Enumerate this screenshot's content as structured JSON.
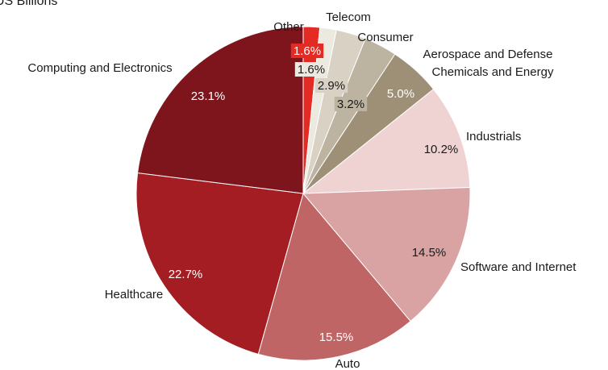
{
  "unit_label": "US Billions",
  "chart_data": {
    "type": "pie",
    "start_angle_deg": 0,
    "direction": "clockwise",
    "slices": [
      {
        "label": "Other",
        "value": 1.6,
        "display": "1.6%",
        "color": "#e42b23"
      },
      {
        "label": "Telecom",
        "value": 1.6,
        "display": "1.6%",
        "color": "#ece9e1"
      },
      {
        "label": "Consumer",
        "value": 2.9,
        "display": "2.9%",
        "color": "#d8d1c4"
      },
      {
        "label": "Aerospace and Defense",
        "value": 3.2,
        "display": "3.2%",
        "color": "#bcb3a0"
      },
      {
        "label": "Chemicals and Energy",
        "value": 5.0,
        "display": "5.0%",
        "color": "#9d9077"
      },
      {
        "label": "Industrials",
        "value": 10.2,
        "display": "10.2%",
        "color": "#efd3d3"
      },
      {
        "label": "Software and Internet",
        "value": 14.5,
        "display": "14.5%",
        "color": "#d9a3a3"
      },
      {
        "label": "Auto",
        "value": 15.5,
        "display": "15.5%",
        "color": "#c06565"
      },
      {
        "label": "Healthcare",
        "value": 22.7,
        "display": "22.7%",
        "color": "#a31d22"
      },
      {
        "label": "Computing and Electronics",
        "value": 23.1,
        "display": "23.1%",
        "color": "#7e141c"
      }
    ]
  }
}
